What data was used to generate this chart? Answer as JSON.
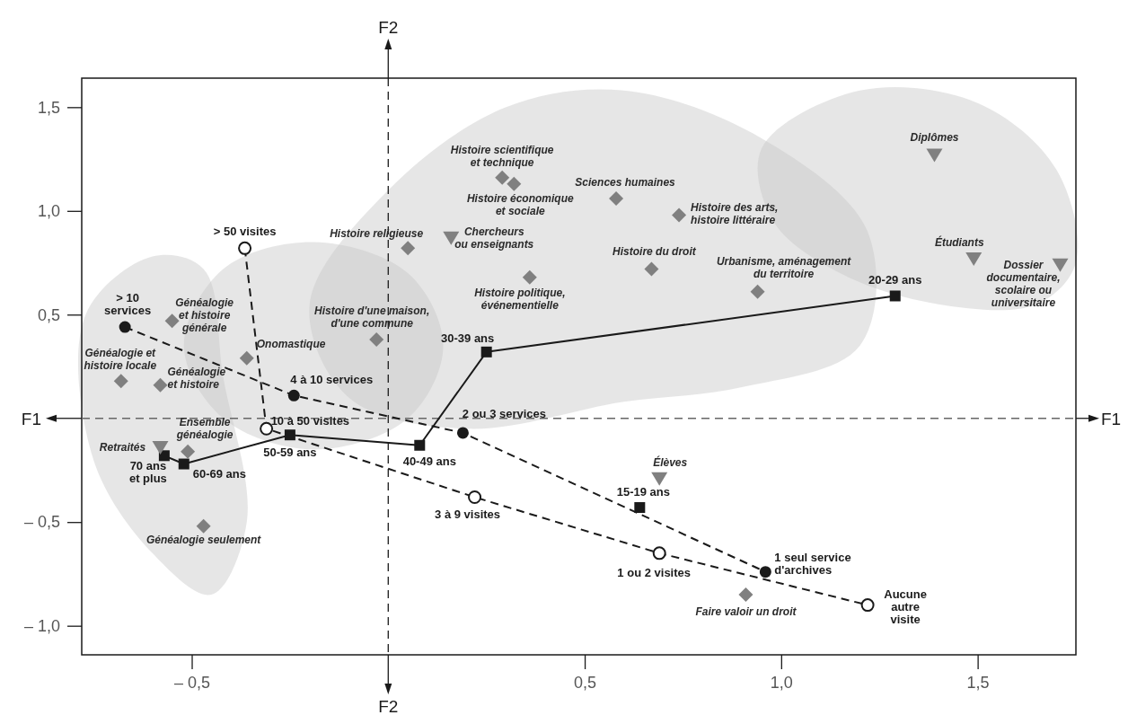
{
  "chart_data": {
    "type": "scatter",
    "xlim": [
      -0.78,
      1.75
    ],
    "ylim": [
      -1.14,
      1.64
    ],
    "xticks": [
      {
        "value": -0.5,
        "label": "– 0,5"
      },
      {
        "value": 0.5,
        "label": "0,5"
      },
      {
        "value": 1.0,
        "label": "1,0"
      },
      {
        "value": 1.5,
        "label": "1,5"
      }
    ],
    "yticks": [
      {
        "value": -1.0,
        "label": "– 1,0"
      },
      {
        "value": -0.5,
        "label": "– 0,5"
      },
      {
        "value": 0.5,
        "label": "0,5"
      },
      {
        "value": 1.0,
        "label": "1,0"
      },
      {
        "value": 1.5,
        "label": "1,5"
      }
    ],
    "grid": false,
    "ref_lines": [
      {
        "axis": "x",
        "value": 0,
        "label": "F2",
        "line_style": "dashed",
        "color": "#1a1a1a"
      },
      {
        "axis": "y",
        "value": 0,
        "label": "F1",
        "line_style": "dashed",
        "color": "#666666"
      }
    ],
    "series": [
      {
        "type": "line",
        "color": "#1a1a1a",
        "marker": "none",
        "line_style": "dashed",
        "x": [
          -0.365,
          -0.31,
          0.22,
          0.69,
          1.22
        ],
        "values": [
          0.82,
          -0.05,
          -0.38,
          -0.65,
          -0.9
        ]
      },
      {
        "color": "#ffffff",
        "marker": "circle",
        "x": [
          -0.365,
          -0.31,
          0.22,
          0.69,
          1.22
        ],
        "values": [
          0.82,
          -0.05,
          -0.38,
          -0.65,
          -0.9
        ]
      },
      {
        "type": "line",
        "color": "#1a1a1a",
        "marker": "circle",
        "line_style": "dashed",
        "x": [
          -0.67,
          -0.24,
          0.19,
          0.96
        ],
        "values": [
          0.44,
          0.11,
          -0.07,
          -0.74
        ]
      },
      {
        "type": "line",
        "color": "#1a1a1a",
        "marker": "square",
        "line_style": "solid",
        "x": [
          -0.57,
          -0.52,
          -0.25,
          0.08,
          0.25,
          1.29
        ],
        "values": [
          -0.18,
          -0.22,
          -0.08,
          -0.13,
          0.32,
          0.59
        ]
      },
      {
        "color": "#1a1a1a",
        "marker": "square",
        "x": [
          0.64
        ],
        "values": [
          -0.43
        ]
      },
      {
        "color": "#808080",
        "marker": "diamond",
        "x": [
          0.29,
          0.32,
          0.58,
          0.74,
          0.05,
          0.36,
          0.67,
          0.94,
          -0.03,
          -0.36,
          -0.55,
          -0.68,
          -0.58,
          -0.51,
          -0.47,
          0.91
        ],
        "values": [
          1.16,
          1.13,
          1.06,
          0.98,
          0.82,
          0.68,
          0.72,
          0.61,
          0.38,
          0.29,
          0.47,
          0.18,
          0.16,
          -0.16,
          -0.52,
          -0.85
        ]
      },
      {
        "color": "#808080",
        "marker": "triangle",
        "x": [
          0.16,
          -0.58,
          0.69,
          1.39,
          1.49,
          1.71
        ],
        "values": [
          0.87,
          -0.14,
          -0.29,
          1.27,
          0.77,
          0.74
        ]
      }
    ],
    "annotations": [
      {
        "text": "> 50 visites",
        "x": -0.365,
        "y": 0.82
      },
      {
        "text": "10 à 50 visites",
        "x": -0.31,
        "y": -0.05
      },
      {
        "text": "3 à 9 visites",
        "x": 0.22,
        "y": -0.38
      },
      {
        "text": "1 ou 2 visites",
        "x": 0.69,
        "y": -0.65
      },
      {
        "text": "Aucune\nautre\nvisite",
        "x": 1.22,
        "y": -0.9
      },
      {
        "text": "> 10\nservices",
        "x": -0.67,
        "y": 0.44
      },
      {
        "text": "4 à 10 services",
        "x": -0.24,
        "y": 0.11
      },
      {
        "text": "2 ou 3 services",
        "x": 0.19,
        "y": -0.07
      },
      {
        "text": "1 seul service\nd'archives",
        "x": 0.96,
        "y": -0.74
      },
      {
        "text": "70 ans\net plus",
        "x": -0.57,
        "y": -0.18
      },
      {
        "text": "60-69 ans",
        "x": -0.52,
        "y": -0.22
      },
      {
        "text": "50-59 ans",
        "x": -0.25,
        "y": -0.08
      },
      {
        "text": "40-49 ans",
        "x": 0.08,
        "y": -0.13
      },
      {
        "text": "30-39 ans",
        "x": 0.25,
        "y": 0.32
      },
      {
        "text": "20-29 ans",
        "x": 1.29,
        "y": 0.59
      },
      {
        "text": "15-19 ans",
        "x": 0.64,
        "y": -0.43
      },
      {
        "text": "Histoire scientifique\net technique",
        "x": 0.29,
        "y": 1.16
      },
      {
        "text": "Histoire économique\net sociale",
        "x": 0.32,
        "y": 1.13
      },
      {
        "text": "Sciences humaines",
        "x": 0.58,
        "y": 1.06
      },
      {
        "text": "Histoire des arts,\nhistoire littéraire",
        "x": 0.74,
        "y": 0.98
      },
      {
        "text": "Histoire religieuse",
        "x": 0.05,
        "y": 0.82
      },
      {
        "text": "Histoire politique,\névénementielle",
        "x": 0.36,
        "y": 0.68
      },
      {
        "text": "Histoire du droit",
        "x": 0.67,
        "y": 0.72
      },
      {
        "text": "Urbanisme, aménagement\ndu territoire",
        "x": 0.94,
        "y": 0.61
      },
      {
        "text": "Histoire d'une maison,\nd'une commune",
        "x": -0.03,
        "y": 0.38
      },
      {
        "text": "Onomastique",
        "x": -0.36,
        "y": 0.29
      },
      {
        "text": "Généalogie\net histoire\ngénérale",
        "x": -0.55,
        "y": 0.47
      },
      {
        "text": "Généalogie et\nhistoire locale",
        "x": -0.68,
        "y": 0.18
      },
      {
        "text": "Généalogie\net histoire",
        "x": -0.58,
        "y": 0.16
      },
      {
        "text": "Ensemble\ngénéalogie",
        "x": -0.51,
        "y": -0.16
      },
      {
        "text": "Généalogie seulement",
        "x": -0.47,
        "y": -0.52
      },
      {
        "text": "Faire valoir un droit",
        "x": 0.91,
        "y": -0.85
      },
      {
        "text": "Chercheurs\nou enseignants",
        "x": 0.16,
        "y": 0.87
      },
      {
        "text": "Retraités",
        "x": -0.58,
        "y": -0.14
      },
      {
        "text": "Élèves",
        "x": 0.69,
        "y": -0.29
      },
      {
        "text": "Diplômes",
        "x": 1.39,
        "y": 1.27
      },
      {
        "text": "Étudiants",
        "x": 1.49,
        "y": 0.77
      },
      {
        "text": "Dossier\ndocumentaire,\nscolaire ou\nuniversitaire",
        "x": 1.71,
        "y": 0.74
      }
    ]
  }
}
